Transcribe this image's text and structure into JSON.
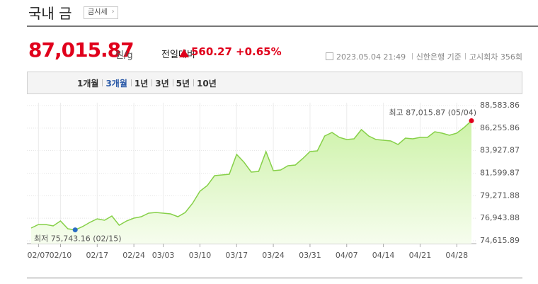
{
  "header": {
    "title": "국내 금",
    "button": "금시세"
  },
  "price": {
    "value": "87,015.87",
    "unit": "원/g",
    "change_label": "전일대비",
    "change": "560.27",
    "rate": "+0.65%",
    "datetime": "2023.05.04 21:49",
    "source": "신한은행 기준",
    "round": "고시회차 356회"
  },
  "tabs": [
    "1개월",
    "3개월",
    "1년",
    "3년",
    "5년",
    "10년"
  ],
  "selected_tab": 1,
  "chart_data": {
    "type": "area",
    "color": "#86d048",
    "grid": true,
    "categories": [
      null,
      "02/07",
      null,
      null,
      "02/10",
      null,
      null,
      null,
      null,
      "02/17",
      null,
      null,
      null,
      null,
      "02/24",
      null,
      null,
      null,
      "03/03",
      null,
      null,
      null,
      null,
      "03/10",
      null,
      null,
      null,
      null,
      "03/17",
      null,
      null,
      null,
      null,
      "03/24",
      null,
      null,
      null,
      null,
      "03/31",
      null,
      null,
      null,
      null,
      "04/07",
      null,
      null,
      null,
      null,
      "04/14",
      null,
      null,
      null,
      null,
      "04/21",
      null,
      null,
      null,
      null,
      "04/28",
      null,
      null
    ],
    "values": [
      75932,
      76298,
      76298,
      76152,
      76664,
      75859,
      75743.16,
      76079,
      76518,
      76883,
      76737,
      77176,
      76225,
      76664,
      76956,
      77103,
      77468,
      77541,
      77468,
      77395,
      77103,
      77541,
      78492,
      79735,
      80320,
      81344,
      81417,
      81490,
      83538,
      82734,
      81710,
      81783,
      83831,
      81856,
      81929,
      82368,
      82441,
      83099,
      83831,
      83904,
      85439,
      85805,
      85293,
      85074,
      85147,
      86098,
      85439,
      85074,
      85001,
      84927,
      84562,
      85220,
      85147,
      85293,
      85293,
      85878,
      85732,
      85513,
      85732,
      86317,
      87015.87
    ],
    "ylim": [
      74615.89,
      88583.86
    ],
    "yticks": [
      {
        "value": 74615.89,
        "label": "74,615.89"
      },
      {
        "value": 76943.88,
        "label": "76,943.88"
      },
      {
        "value": 79271.88,
        "label": "79,271.88"
      },
      {
        "value": 81599.87,
        "label": "81,599.87"
      },
      {
        "value": 83927.87,
        "label": "83,927.87"
      },
      {
        "value": 86255.86,
        "label": "86,255.86"
      },
      {
        "value": 88583.86,
        "label": "88,583.86"
      }
    ],
    "annotations": [
      {
        "text": "최고 87,015.87 (05/04)",
        "index": 60,
        "color": "#e0001b"
      },
      {
        "text": "최저 75,743.16 (02/15)",
        "index": 6,
        "color": "#2a6cc4"
      }
    ]
  }
}
